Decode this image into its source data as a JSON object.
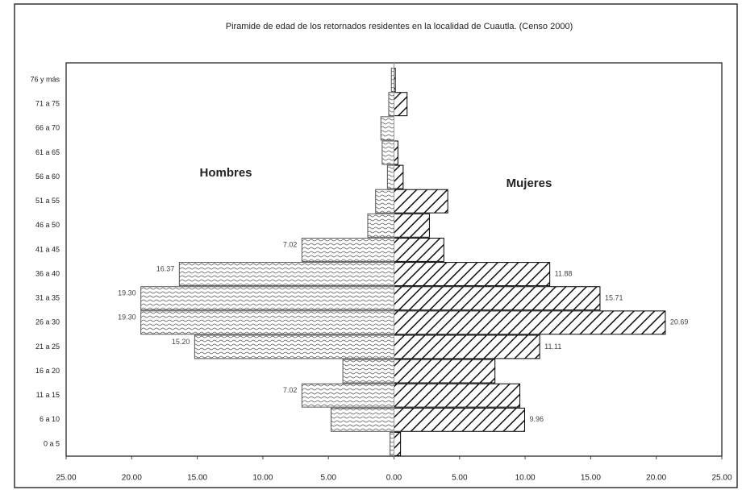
{
  "chart_data": {
    "type": "pyramid",
    "title": "Piramide de edad de los retornados residentes en la localidad de Cuautla. (Censo 2000)",
    "annotations": [
      "Hombres",
      "Mujeres"
    ],
    "categories": [
      "76 y más",
      "71 a 75",
      "66 a 70",
      "61 a 65",
      "56 a 60",
      "51 a 55",
      "46 a 50",
      "41 a 45",
      "36 a 40",
      "31 a 35",
      "26 a 30",
      "21 a 25",
      "16 a 20",
      "11 a 15",
      "6 a 10",
      "0 a 5"
    ],
    "series": [
      {
        "name": "Hombres",
        "color": "#555555",
        "values": [
          -0.2,
          -0.4,
          -1.0,
          -0.9,
          -0.5,
          -1.4,
          -2.0,
          -7.02,
          -16.37,
          -19.3,
          -19.3,
          -15.2,
          -3.9,
          -7.02,
          -4.8,
          -0.3
        ],
        "value_labels": [
          null,
          null,
          null,
          null,
          null,
          null,
          null,
          "7.02",
          "16.37",
          "19.30",
          "19.30",
          "15.20",
          null,
          "7.02",
          null,
          null
        ]
      },
      {
        "name": "Mujeres",
        "color": "#000000",
        "values": [
          0.1,
          1.0,
          0,
          0.3,
          0.7,
          4.1,
          2.7,
          3.8,
          11.88,
          15.71,
          20.69,
          11.11,
          7.7,
          9.6,
          9.96,
          0.5
        ],
        "value_labels": [
          null,
          null,
          null,
          null,
          null,
          null,
          null,
          null,
          "11.88",
          "15.71",
          "20.69",
          "11.11",
          null,
          null,
          "9.96",
          null
        ]
      }
    ],
    "xlim": [
      -25,
      25
    ],
    "xticks": [
      {
        "value": -25,
        "label": "25.00"
      },
      {
        "value": -20,
        "label": "20.00"
      },
      {
        "value": -15,
        "label": "15.00"
      },
      {
        "value": -10,
        "label": "10.00"
      },
      {
        "value": -5,
        "label": "5.00"
      },
      {
        "value": 0,
        "label": "0.00"
      },
      {
        "value": 5,
        "label": "5.00"
      },
      {
        "value": 10,
        "label": "10.00"
      },
      {
        "value": 15,
        "label": "15.00"
      },
      {
        "value": 20,
        "label": "20.00"
      },
      {
        "value": 25,
        "label": "25.00"
      }
    ]
  }
}
